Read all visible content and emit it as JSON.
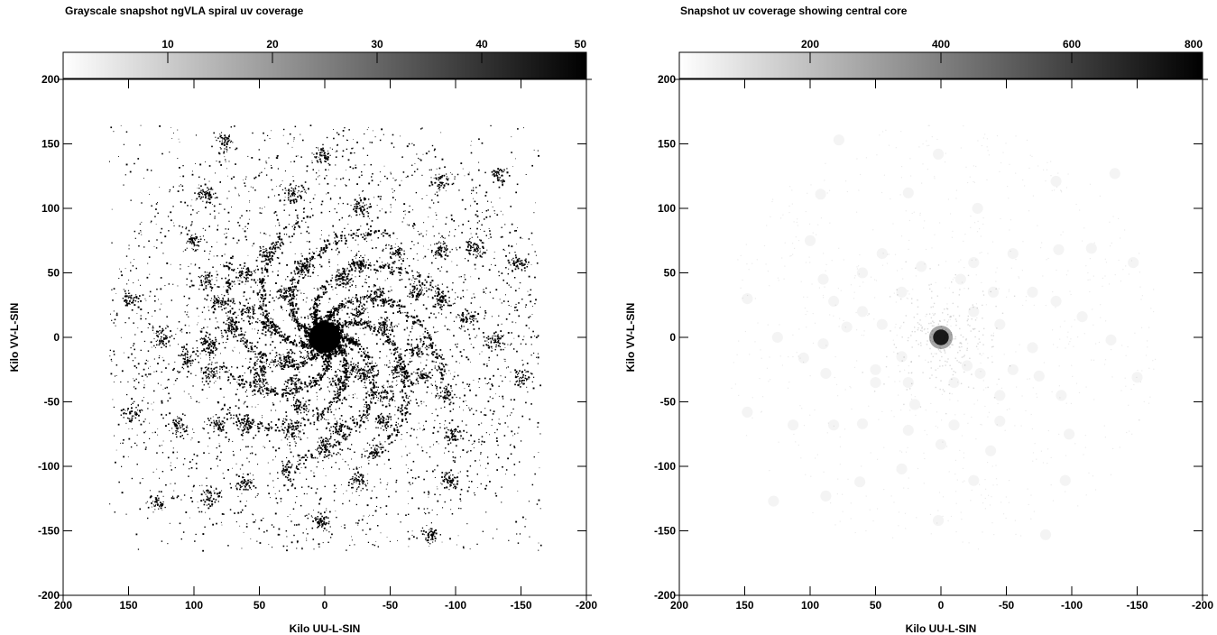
{
  "chart_data": [
    {
      "type": "heatmap",
      "title": "Grayscale snapshot ngVLA spiral uv coverage",
      "xlabel": "Kilo UU-L-SIN",
      "ylabel": "Kilo VV-L-SIN",
      "xlim": [
        200,
        -200
      ],
      "ylim": [
        -200,
        200
      ],
      "xticks": [
        200,
        150,
        100,
        50,
        0,
        -50,
        -100,
        -150,
        -200
      ],
      "yticks": [
        200,
        150,
        100,
        50,
        0,
        -50,
        -100,
        -150,
        -200
      ],
      "colorbar": {
        "range": [
          0,
          50
        ],
        "ticks": [
          10,
          20,
          30,
          40,
          50
        ],
        "colormap": "white-to-black"
      },
      "core": {
        "center": [
          0,
          0
        ],
        "radius": 12,
        "intensity": 50
      },
      "outer_extent": 165,
      "clusters": [
        [
          78,
          153
        ],
        [
          2,
          142
        ],
        [
          -133,
          127
        ],
        [
          92,
          111
        ],
        [
          25,
          112
        ],
        [
          -28,
          100
        ],
        [
          -88,
          121
        ],
        [
          100,
          75
        ],
        [
          45,
          65
        ],
        [
          -55,
          65
        ],
        [
          -90,
          68
        ],
        [
          -115,
          69
        ],
        [
          -147,
          58
        ],
        [
          148,
          30
        ],
        [
          90,
          45
        ],
        [
          82,
          28
        ],
        [
          30,
          35
        ],
        [
          -40,
          35
        ],
        [
          -70,
          35
        ],
        [
          -88,
          28
        ],
        [
          -108,
          16
        ],
        [
          125,
          0
        ],
        [
          72,
          8
        ],
        [
          -70,
          -8
        ],
        [
          -130,
          -2
        ],
        [
          -150,
          -31
        ],
        [
          105,
          -16
        ],
        [
          88,
          -28
        ],
        [
          50,
          -35
        ],
        [
          25,
          -35
        ],
        [
          -45,
          -45
        ],
        [
          -92,
          -45
        ],
        [
          148,
          -58
        ],
        [
          113,
          -68
        ],
        [
          82,
          -68
        ],
        [
          60,
          -67
        ],
        [
          20,
          -52
        ],
        [
          -10,
          -68
        ],
        [
          -45,
          -65
        ],
        [
          -98,
          -75
        ],
        [
          0,
          -83
        ],
        [
          -38,
          -88
        ],
        [
          62,
          -112
        ],
        [
          30,
          -102
        ],
        [
          -25,
          -111
        ],
        [
          -95,
          -111
        ],
        [
          88,
          -123
        ],
        [
          128,
          -127
        ],
        [
          2,
          -142
        ],
        [
          -80,
          -153
        ],
        [
          50,
          -25
        ],
        [
          30,
          -15
        ],
        [
          -20,
          -22
        ],
        [
          -30,
          -28
        ],
        [
          -55,
          -25
        ],
        [
          60,
          20
        ],
        [
          45,
          10
        ],
        [
          -45,
          10
        ],
        [
          -25,
          20
        ],
        [
          15,
          55
        ],
        [
          -15,
          45
        ],
        [
          -25,
          58
        ],
        [
          60,
          50
        ],
        [
          90,
          -5
        ],
        [
          -10,
          -35
        ],
        [
          25,
          -72
        ],
        [
          -75,
          -30
        ]
      ]
    },
    {
      "type": "heatmap",
      "title": "Snapshot uv coverage showing central core",
      "xlabel": "Kilo UU-L-SIN",
      "ylabel": "Kilo VV-L-SIN",
      "xlim": [
        200,
        -200
      ],
      "ylim": [
        -200,
        200
      ],
      "xticks": [
        200,
        150,
        100,
        50,
        0,
        -50,
        -100,
        -150,
        -200
      ],
      "yticks": [
        200,
        150,
        100,
        50,
        0,
        -50,
        -100,
        -150,
        -200
      ],
      "colorbar": {
        "range": [
          0,
          800
        ],
        "ticks": [
          200,
          400,
          600,
          800
        ],
        "colormap": "white-to-black"
      },
      "core": {
        "center": [
          0,
          0
        ],
        "radius": 6,
        "intensity": 800
      }
    }
  ]
}
